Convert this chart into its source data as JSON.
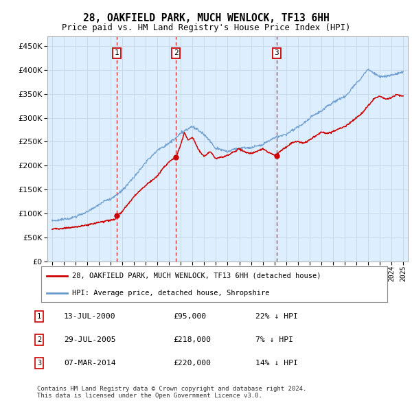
{
  "title": "28, OAKFIELD PARK, MUCH WENLOCK, TF13 6HH",
  "subtitle": "Price paid vs. HM Land Registry's House Price Index (HPI)",
  "background_color": "#ffffff",
  "plot_bg_color": "#ddeeff",
  "grid_color": "#c8d8e8",
  "ylim": [
    0,
    470000
  ],
  "yticks": [
    0,
    50000,
    100000,
    150000,
    200000,
    250000,
    300000,
    350000,
    400000,
    450000
  ],
  "sale_dates_float": [
    2000.533,
    2005.572,
    2014.178
  ],
  "sale_prices": [
    95000,
    218000,
    220000
  ],
  "sale_labels": [
    "1",
    "2",
    "3"
  ],
  "legend_entries": [
    "28, OAKFIELD PARK, MUCH WENLOCK, TF13 6HH (detached house)",
    "HPI: Average price, detached house, Shropshire"
  ],
  "legend_colors": [
    "#cc0000",
    "#6699cc"
  ],
  "table_rows": [
    [
      "1",
      "13-JUL-2000",
      "£95,000",
      "22% ↓ HPI"
    ],
    [
      "2",
      "29-JUL-2005",
      "£218,000",
      "7% ↓ HPI"
    ],
    [
      "3",
      "07-MAR-2014",
      "£220,000",
      "14% ↓ HPI"
    ]
  ],
  "footnote": "Contains HM Land Registry data © Crown copyright and database right 2024.\nThis data is licensed under the Open Government Licence v3.0.",
  "hpi_color": "#6699cc",
  "price_color": "#cc0000",
  "vline_color": "#cc0000"
}
